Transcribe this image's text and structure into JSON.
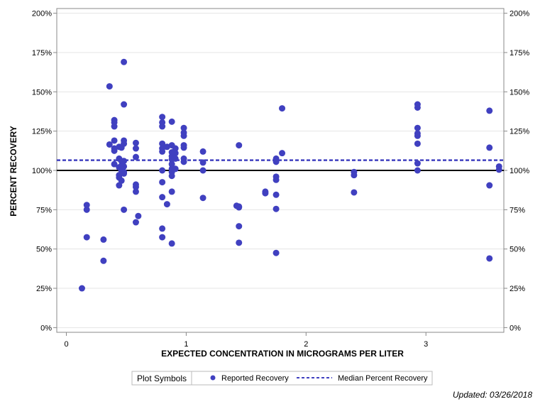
{
  "chart_data": {
    "type": "scatter",
    "title": "",
    "xlabel": "EXPECTED CONCENTRATION IN MICROGRAMS PER LITER",
    "ylabel": "PERCENT RECOVERY",
    "xlim": [
      -0.08,
      3.65
    ],
    "ylim": [
      -3,
      203
    ],
    "x_ticks": [
      0,
      1,
      2,
      3
    ],
    "x_tick_labels": [
      "0",
      "1",
      "2",
      "3"
    ],
    "y_ticks": [
      0,
      25,
      50,
      75,
      100,
      125,
      150,
      175,
      200
    ],
    "y_tick_labels": [
      "0%",
      "25%",
      "50%",
      "75%",
      "100%",
      "125%",
      "150%",
      "175%",
      "200%"
    ],
    "reference_line": 100,
    "median_line": 106.5,
    "series": [
      {
        "name": "Reported Recovery",
        "color": "#4040c0",
        "points": [
          [
            0.13,
            25
          ],
          [
            0.17,
            78
          ],
          [
            0.17,
            75
          ],
          [
            0.17,
            57.5
          ],
          [
            0.31,
            56
          ],
          [
            0.31,
            42.5
          ],
          [
            0.36,
            153.5
          ],
          [
            0.36,
            116.5
          ],
          [
            0.4,
            132
          ],
          [
            0.4,
            130.5
          ],
          [
            0.4,
            128
          ],
          [
            0.4,
            119
          ],
          [
            0.4,
            114
          ],
          [
            0.4,
            112.5
          ],
          [
            0.4,
            104
          ],
          [
            0.44,
            115
          ],
          [
            0.44,
            107.5
          ],
          [
            0.44,
            102
          ],
          [
            0.44,
            97
          ],
          [
            0.44,
            95.5
          ],
          [
            0.44,
            90.5
          ],
          [
            0.46,
            114.5
          ],
          [
            0.46,
            106
          ],
          [
            0.46,
            103
          ],
          [
            0.46,
            100
          ],
          [
            0.46,
            93.5
          ],
          [
            0.48,
            169
          ],
          [
            0.48,
            142
          ],
          [
            0.48,
            119
          ],
          [
            0.48,
            117
          ],
          [
            0.48,
            106
          ],
          [
            0.48,
            102.5
          ],
          [
            0.48,
            99
          ],
          [
            0.48,
            98
          ],
          [
            0.48,
            75
          ],
          [
            0.58,
            117.5
          ],
          [
            0.58,
            114
          ],
          [
            0.58,
            108.5
          ],
          [
            0.58,
            91
          ],
          [
            0.58,
            89.5
          ],
          [
            0.58,
            86.5
          ],
          [
            0.58,
            67
          ],
          [
            0.6,
            71
          ],
          [
            0.8,
            134
          ],
          [
            0.8,
            130.5
          ],
          [
            0.8,
            128
          ],
          [
            0.8,
            117
          ],
          [
            0.8,
            114
          ],
          [
            0.8,
            112
          ],
          [
            0.8,
            100
          ],
          [
            0.8,
            92.5
          ],
          [
            0.8,
            83
          ],
          [
            0.8,
            63
          ],
          [
            0.8,
            57.5
          ],
          [
            0.84,
            115
          ],
          [
            0.84,
            78.5
          ],
          [
            0.88,
            131
          ],
          [
            0.88,
            116
          ],
          [
            0.88,
            111.5
          ],
          [
            0.88,
            109
          ],
          [
            0.88,
            107
          ],
          [
            0.88,
            104
          ],
          [
            0.88,
            101
          ],
          [
            0.88,
            99
          ],
          [
            0.88,
            96.5
          ],
          [
            0.88,
            86.5
          ],
          [
            0.88,
            53.5
          ],
          [
            0.91,
            114
          ],
          [
            0.91,
            111
          ],
          [
            0.91,
            107.5
          ],
          [
            0.91,
            101
          ],
          [
            0.98,
            127
          ],
          [
            0.98,
            124
          ],
          [
            0.98,
            122
          ],
          [
            0.98,
            116
          ],
          [
            0.98,
            114.5
          ],
          [
            0.98,
            107.5
          ],
          [
            0.98,
            105.5
          ],
          [
            1.14,
            112
          ],
          [
            1.14,
            105
          ],
          [
            1.14,
            100
          ],
          [
            1.14,
            82.5
          ],
          [
            1.42,
            77.5
          ],
          [
            1.44,
            116
          ],
          [
            1.44,
            77
          ],
          [
            1.44,
            76.5
          ],
          [
            1.44,
            64.5
          ],
          [
            1.44,
            54
          ],
          [
            1.66,
            86.5
          ],
          [
            1.66,
            85.5
          ],
          [
            1.75,
            107.5
          ],
          [
            1.75,
            105.5
          ],
          [
            1.75,
            96
          ],
          [
            1.75,
            94
          ],
          [
            1.75,
            84.5
          ],
          [
            1.75,
            75.5
          ],
          [
            1.75,
            47.5
          ],
          [
            1.8,
            139.5
          ],
          [
            1.8,
            111
          ],
          [
            2.4,
            99
          ],
          [
            2.4,
            97
          ],
          [
            2.4,
            86
          ],
          [
            2.93,
            142
          ],
          [
            2.93,
            140
          ],
          [
            2.93,
            127
          ],
          [
            2.93,
            123.5
          ],
          [
            2.93,
            122
          ],
          [
            2.93,
            117
          ],
          [
            2.93,
            104.5
          ],
          [
            2.93,
            100
          ],
          [
            3.53,
            138
          ],
          [
            3.53,
            114.5
          ],
          [
            3.53,
            90.5
          ],
          [
            3.53,
            44
          ],
          [
            3.61,
            102.5
          ],
          [
            3.61,
            100.5
          ]
        ]
      }
    ],
    "legend": {
      "position": "bottom-center",
      "title": "Plot Symbols",
      "entries": [
        {
          "label": "Reported Recovery",
          "symbol": "circle",
          "color": "#4040c0"
        },
        {
          "label": "Median Percent Recovery",
          "symbol": "dashed-line",
          "color": "#4040c0"
        }
      ]
    },
    "footer": "Updated: 03/26/2018"
  }
}
